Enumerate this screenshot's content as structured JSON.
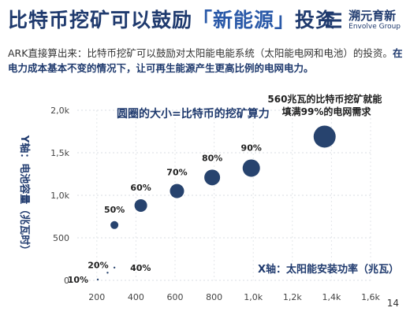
{
  "header": {
    "title_main": "比特币挖矿可以鼓励",
    "title_highlight": "「新能源」",
    "title_tail": "投资",
    "logo_cn": "溯元育新",
    "logo_en": "Envolve Group"
  },
  "intro": {
    "line1": "ARK直接算出来：比特币挖矿可以鼓励对太阳能电能系统（太阳能电网和电池）的投资。",
    "line2": "在电力成本基本不变的情况下，让可再生能源产生更高比例的电网电力。"
  },
  "chart_data": {
    "type": "scatter",
    "bubble_note": "圆圈的大小=比特币的挖矿算力",
    "annotation": "560兆瓦的比特币挖矿就能填满99%的电网需求",
    "xlabel": "X轴：太阳能安装功率（兆瓦）",
    "ylabel": "Y轴：电池容量（兆瓦时）",
    "xlim": [
      100,
      1600
    ],
    "ylim": [
      0,
      2000
    ],
    "x_ticks": [
      "200",
      "400",
      "600",
      "800",
      "1,0k",
      "1,2k",
      "1,4k",
      "1,6k"
    ],
    "y_ticks": [
      "0",
      "500",
      "1,0k",
      "1,5k",
      "2,0k"
    ],
    "points": [
      {
        "x": 205,
        "y": 10,
        "r": 0.5,
        "label": "10%"
      },
      {
        "x": 255,
        "y": 90,
        "r": 0.8,
        "label": "20%"
      },
      {
        "x": 290,
        "y": 150,
        "r": 1,
        "label": "40%"
      },
      {
        "x": 290,
        "y": 650,
        "r": 5,
        "label": "50%"
      },
      {
        "x": 425,
        "y": 880,
        "r": 8,
        "label": "60%"
      },
      {
        "x": 610,
        "y": 1050,
        "r": 9,
        "label": "70%"
      },
      {
        "x": 790,
        "y": 1210,
        "r": 10,
        "label": "80%"
      },
      {
        "x": 990,
        "y": 1320,
        "r": 11,
        "label": "90%"
      },
      {
        "x": 1365,
        "y": 1690,
        "r": 14,
        "label": ""
      }
    ],
    "bubble_color": "#27436e"
  },
  "page_number": "14"
}
